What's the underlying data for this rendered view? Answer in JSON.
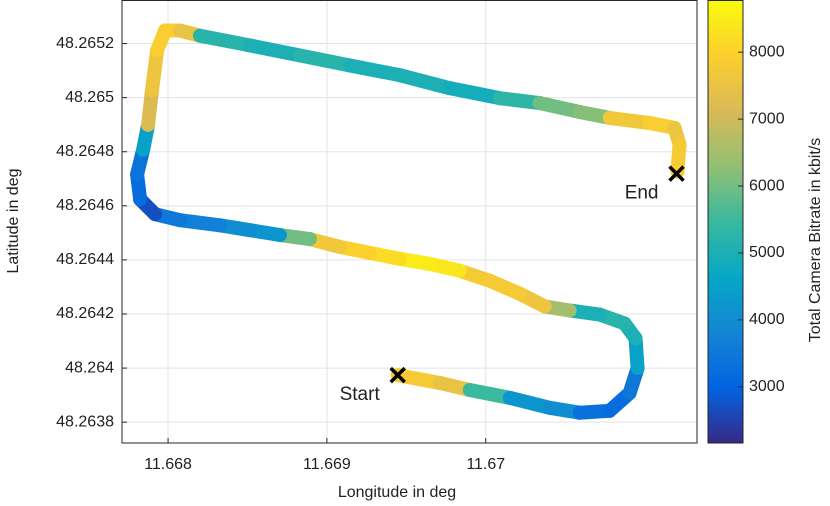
{
  "chart_data": {
    "type": "scatter",
    "colormap": "parula",
    "xlabel": "Longitude in deg",
    "ylabel": "Latitude in deg",
    "colorbar_label": "Total Camera Bitrate in kbit/s",
    "xlim": [
      11.66771,
      11.67133
    ],
    "xticks": [
      11.668,
      11.669,
      11.67
    ],
    "ylim": [
      48.263723,
      48.265361
    ],
    "yticks": [
      48.2638,
      48.264,
      48.2642,
      48.2644,
      48.2646,
      48.2648,
      48.265,
      48.2652
    ],
    "clim": [
      2160,
      8780
    ],
    "cticks": [
      3000,
      4000,
      5000,
      6000,
      7000,
      8000
    ],
    "grid": true,
    "x": [
      11.669446,
      11.669711,
      11.669899,
      11.670151,
      11.670402,
      11.670591,
      11.67078,
      11.670906,
      11.670956,
      11.670943,
      11.670874,
      11.670717,
      11.670528,
      11.670371,
      11.670214,
      11.670025,
      11.669836,
      11.669648,
      11.669459,
      11.66927,
      11.669082,
      11.668893,
      11.668704,
      11.668516,
      11.668327,
      11.668075,
      11.667918,
      11.667824,
      11.667805,
      11.667843,
      11.667874,
      11.667899,
      11.667931,
      11.667981,
      11.668075,
      11.668201,
      11.668516,
      11.66883,
      11.669145,
      11.669459,
      11.669773,
      11.670088,
      11.67034,
      11.670591,
      11.67078,
      11.671031,
      11.671189,
      11.67122,
      11.671207
    ],
    "y": [
      48.263974,
      48.263945,
      48.263919,
      48.26389,
      48.263853,
      48.263835,
      48.263842,
      48.263908,
      48.264,
      48.26411,
      48.264165,
      48.264198,
      48.264213,
      48.264228,
      48.264275,
      48.264323,
      48.26436,
      48.264385,
      48.264404,
      48.264426,
      48.264448,
      48.264477,
      48.264492,
      48.26451,
      48.264528,
      48.264547,
      48.264569,
      48.264624,
      48.264716,
      48.264807,
      48.264899,
      48.265028,
      48.265174,
      48.265248,
      48.265248,
      48.265229,
      48.265193,
      48.265156,
      48.265119,
      48.265083,
      48.265035,
      48.264998,
      48.26498,
      48.264947,
      48.264925,
      48.264906,
      48.264888,
      48.264826,
      48.264727
    ],
    "values": [
      7800,
      7500,
      5500,
      4200,
      4000,
      3300,
      3200,
      3500,
      4500,
      5000,
      5200,
      5000,
      6500,
      7600,
      7800,
      7800,
      8400,
      8500,
      8200,
      8000,
      7700,
      6000,
      4200,
      4000,
      3700,
      3500,
      2700,
      3200,
      3400,
      4500,
      7200,
      7600,
      7900,
      7900,
      7500,
      5200,
      5000,
      5200,
      5000,
      5000,
      4900,
      5300,
      6000,
      6200,
      7700,
      7900,
      7600,
      7800,
      7900
    ],
    "annotations": [
      {
        "label": "Start",
        "x": 11.669446,
        "y": 48.263974
      },
      {
        "label": "End",
        "x": 11.671201,
        "y": 48.264719
      }
    ]
  }
}
